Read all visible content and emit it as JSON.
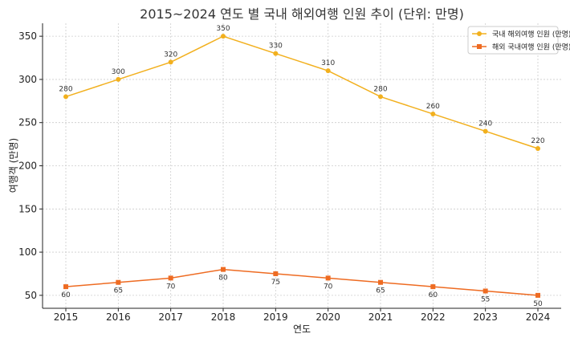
{
  "chart_data": {
    "type": "line",
    "title": "2015~2024 연도 별 국내 해외여행 인원 추이 (단위: 만명)",
    "xlabel": "연도",
    "ylabel": "여행객 (만명)",
    "x": [
      "2015",
      "2016",
      "2017",
      "2018",
      "2019",
      "2020",
      "2021",
      "2022",
      "2023",
      "2024"
    ],
    "ylim": [
      35,
      365
    ],
    "yticks": [
      50,
      100,
      150,
      200,
      250,
      300,
      350
    ],
    "grid": true,
    "legend_position": "top-right",
    "series": [
      {
        "name": "국내 해외여행 인원 (만명)",
        "color": "#f2b01e",
        "marker": "circle",
        "label_position": "above",
        "values": [
          280,
          300,
          320,
          350,
          330,
          310,
          280,
          260,
          240,
          220
        ]
      },
      {
        "name": "해외 국내여행 인원 (만명)",
        "color": "#ee6b22",
        "marker": "square",
        "label_position": "below",
        "values": [
          60,
          65,
          70,
          80,
          75,
          70,
          65,
          60,
          55,
          50
        ]
      }
    ]
  }
}
